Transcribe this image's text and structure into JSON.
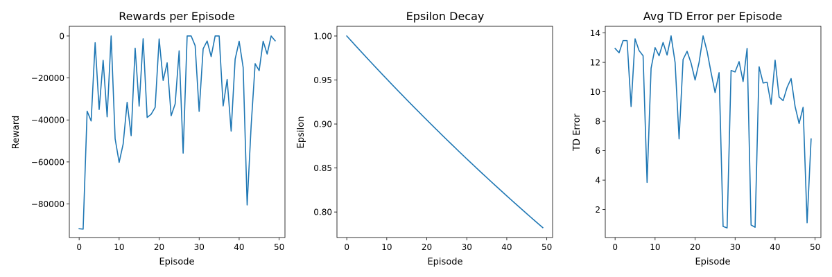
{
  "colors": {
    "series": "#1f77b4",
    "axes": "#000000",
    "background": "#ffffff"
  },
  "chart_data": [
    {
      "type": "line",
      "title": "Rewards per Episode",
      "xlabel": "Episode",
      "ylabel": "Reward",
      "grid": false,
      "xlim": [
        -2.45,
        51.45
      ],
      "ylim": [
        -96000,
        4600
      ],
      "xticks": [
        0,
        10,
        20,
        30,
        40,
        50
      ],
      "xtick_labels": [
        "0",
        "10",
        "20",
        "30",
        "40",
        "50"
      ],
      "yticks": [
        -80000,
        -60000,
        -40000,
        -20000,
        0
      ],
      "ytick_labels": [
        "−80000",
        "−60000",
        "−40000",
        "−20000",
        "0"
      ],
      "series": [
        {
          "x": [
            0,
            1,
            2,
            3,
            4,
            5,
            6,
            7,
            8,
            9,
            10,
            11,
            12,
            13,
            14,
            15,
            16,
            17,
            18,
            19,
            20,
            21,
            22,
            23,
            24,
            25,
            26,
            27,
            28,
            29,
            30,
            31,
            32,
            33,
            34,
            35,
            36,
            37,
            38,
            39,
            40,
            41,
            42,
            43,
            44,
            45,
            46,
            47,
            48,
            49
          ],
          "values": [
            -91800,
            -92000,
            -35800,
            -40500,
            -3200,
            -35000,
            -11600,
            -38500,
            0,
            -49000,
            -60200,
            -51500,
            -31600,
            -47500,
            -5800,
            -33400,
            -1300,
            -38800,
            -37300,
            -34000,
            -1400,
            -21200,
            -12800,
            -38000,
            -32400,
            -7100,
            -55800,
            0,
            0,
            -4600,
            -35900,
            -6100,
            -2400,
            -9800,
            0,
            0,
            -33300,
            -20700,
            -45300,
            -11000,
            -2500,
            -15000,
            -80500,
            -42700,
            -13200,
            -16500,
            -2500,
            -8600,
            0,
            -2300
          ]
        }
      ]
    },
    {
      "type": "line",
      "title": "Epsilon Decay",
      "xlabel": "Episode",
      "ylabel": "Epsilon",
      "grid": false,
      "xlim": [
        -2.45,
        51.45
      ],
      "ylim": [
        0.771,
        1.011
      ],
      "xticks": [
        0,
        10,
        20,
        30,
        40,
        50
      ],
      "xtick_labels": [
        "0",
        "10",
        "20",
        "30",
        "40",
        "50"
      ],
      "yticks": [
        0.8,
        0.85,
        0.9,
        0.95,
        1.0
      ],
      "ytick_labels": [
        "0.80",
        "0.85",
        "0.90",
        "0.95",
        "1.00"
      ],
      "series": [
        {
          "x": [
            0,
            1,
            2,
            3,
            4,
            5,
            6,
            7,
            8,
            9,
            10,
            11,
            12,
            13,
            14,
            15,
            16,
            17,
            18,
            19,
            20,
            21,
            22,
            23,
            24,
            25,
            26,
            27,
            28,
            29,
            30,
            31,
            32,
            33,
            34,
            35,
            36,
            37,
            38,
            39,
            40,
            41,
            42,
            43,
            44,
            45,
            46,
            47,
            48,
            49
          ],
          "decay_start": 1.0,
          "decay_rate": 0.995
        }
      ]
    },
    {
      "type": "line",
      "title": "Avg TD Error per Episode",
      "xlabel": "Episode",
      "ylabel": "TD Error",
      "grid": false,
      "xlim": [
        -2.45,
        51.45
      ],
      "ylim": [
        0.1,
        14.45
      ],
      "xticks": [
        0,
        10,
        20,
        30,
        40,
        50
      ],
      "xtick_labels": [
        "0",
        "10",
        "20",
        "30",
        "40",
        "50"
      ],
      "yticks": [
        2,
        4,
        6,
        8,
        10,
        12,
        14
      ],
      "ytick_labels": [
        "2",
        "4",
        "6",
        "8",
        "10",
        "12",
        "14"
      ],
      "series": [
        {
          "x": [
            0,
            1,
            2,
            3,
            4,
            5,
            6,
            7,
            8,
            9,
            10,
            11,
            12,
            13,
            14,
            15,
            16,
            17,
            18,
            19,
            20,
            21,
            22,
            23,
            24,
            25,
            26,
            27,
            28,
            29,
            30,
            31,
            32,
            33,
            34,
            35,
            36,
            37,
            38,
            39,
            40,
            41,
            42,
            43,
            44,
            45,
            46,
            47,
            48,
            49
          ],
          "values": [
            12.95,
            12.65,
            13.48,
            13.48,
            9.0,
            13.6,
            12.8,
            12.45,
            3.85,
            11.6,
            13.0,
            12.45,
            13.35,
            12.5,
            13.8,
            12.0,
            6.8,
            12.2,
            12.75,
            11.95,
            10.8,
            12.0,
            13.8,
            12.75,
            11.3,
            9.95,
            11.3,
            0.85,
            0.75,
            11.45,
            11.35,
            12.05,
            10.7,
            12.95,
            0.95,
            0.8,
            11.7,
            10.6,
            10.65,
            9.15,
            12.15,
            9.65,
            9.4,
            10.3,
            10.9,
            9.0,
            7.85,
            8.95,
            1.1,
            6.8
          ]
        }
      ]
    }
  ]
}
